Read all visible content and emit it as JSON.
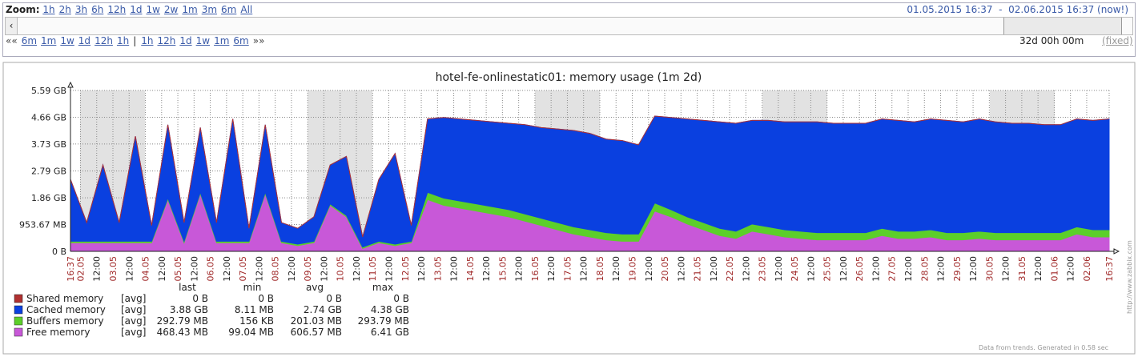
{
  "toolbar": {
    "zoom_label": "Zoom:",
    "zoom_links": [
      "1h",
      "2h",
      "3h",
      "6h",
      "12h",
      "1d",
      "1w",
      "2w",
      "1m",
      "3m",
      "6m",
      "All"
    ],
    "period_from": "01.05.2015 16:37",
    "period_sep": "-",
    "period_to": "02.06.2015 16:37 (now!)",
    "nav_back": "««",
    "nav_left": [
      "6m",
      "1m",
      "1w",
      "1d",
      "12h",
      "1h"
    ],
    "nav_sep": "|",
    "nav_right": [
      "1h",
      "12h",
      "1d",
      "1w",
      "1m",
      "6m"
    ],
    "nav_forward": "»»",
    "period_length": "32d 00h 00m",
    "period_mode": "(fixed)"
  },
  "chart_data": {
    "type": "stacked-area",
    "title": "hotel-fe-onlinestatic01: memory usage  (1m 2d)",
    "x": [
      0,
      12,
      24,
      36,
      48,
      60,
      72,
      84,
      96,
      108,
      120,
      132,
      144,
      156,
      168,
      180,
      192,
      204,
      216,
      228,
      240,
      252,
      264,
      276,
      288,
      300,
      312,
      324,
      336,
      348,
      360,
      372,
      384,
      396,
      408,
      420,
      432,
      444,
      456,
      468,
      480,
      492,
      504,
      516,
      528,
      540,
      552,
      564,
      576,
      588,
      600,
      612,
      624,
      636,
      648,
      660,
      672,
      684,
      696,
      708,
      720,
      732,
      744,
      756,
      768
    ],
    "xlim": [
      0,
      768
    ],
    "xticks": [
      {
        "value": 0,
        "label": "16:37"
      },
      {
        "value": 7.383,
        "label": "02.05"
      },
      {
        "value": 19.383,
        "label": "12:00"
      },
      {
        "value": 31.383,
        "label": "03.05"
      },
      {
        "value": 43.383,
        "label": "12:00"
      },
      {
        "value": 55.383,
        "label": "04.05"
      },
      {
        "value": 67.383,
        "label": "12:00"
      },
      {
        "value": 79.383,
        "label": "05.05"
      },
      {
        "value": 91.383,
        "label": "12:00"
      },
      {
        "value": 103.383,
        "label": "06.05"
      },
      {
        "value": 115.383,
        "label": "12:00"
      },
      {
        "value": 127.383,
        "label": "07.05"
      },
      {
        "value": 139.383,
        "label": "12:00"
      },
      {
        "value": 151.383,
        "label": "08.05"
      },
      {
        "value": 163.383,
        "label": "12:00"
      },
      {
        "value": 175.383,
        "label": "09.05"
      },
      {
        "value": 187.383,
        "label": "12:00"
      },
      {
        "value": 199.383,
        "label": "10.05"
      },
      {
        "value": 211.383,
        "label": "12:00"
      },
      {
        "value": 223.383,
        "label": "11.05"
      },
      {
        "value": 235.383,
        "label": "12:00"
      },
      {
        "value": 247.383,
        "label": "12.05"
      },
      {
        "value": 259.383,
        "label": "12:00"
      },
      {
        "value": 271.383,
        "label": "13.05"
      },
      {
        "value": 283.383,
        "label": "12:00"
      },
      {
        "value": 295.383,
        "label": "14.05"
      },
      {
        "value": 307.383,
        "label": "12:00"
      },
      {
        "value": 319.383,
        "label": "15.05"
      },
      {
        "value": 331.383,
        "label": "12:00"
      },
      {
        "value": 343.383,
        "label": "16.05"
      },
      {
        "value": 355.383,
        "label": "12:00"
      },
      {
        "value": 367.383,
        "label": "17.05"
      },
      {
        "value": 379.383,
        "label": "12:00"
      },
      {
        "value": 391.383,
        "label": "18.05"
      },
      {
        "value": 403.383,
        "label": "12:00"
      },
      {
        "value": 415.383,
        "label": "19.05"
      },
      {
        "value": 427.383,
        "label": "12:00"
      },
      {
        "value": 439.383,
        "label": "20.05"
      },
      {
        "value": 451.383,
        "label": "12:00"
      },
      {
        "value": 463.383,
        "label": "21.05"
      },
      {
        "value": 475.383,
        "label": "12:00"
      },
      {
        "value": 487.383,
        "label": "22.05"
      },
      {
        "value": 499.383,
        "label": "12:00"
      },
      {
        "value": 511.383,
        "label": "23.05"
      },
      {
        "value": 523.383,
        "label": "12:00"
      },
      {
        "value": 535.383,
        "label": "24.05"
      },
      {
        "value": 547.383,
        "label": "12:00"
      },
      {
        "value": 559.383,
        "label": "25.05"
      },
      {
        "value": 571.383,
        "label": "12:00"
      },
      {
        "value": 583.383,
        "label": "26.05"
      },
      {
        "value": 595.383,
        "label": "12:00"
      },
      {
        "value": 607.383,
        "label": "27.05"
      },
      {
        "value": 619.383,
        "label": "12:00"
      },
      {
        "value": 631.383,
        "label": "28.05"
      },
      {
        "value": 643.383,
        "label": "12:00"
      },
      {
        "value": 655.383,
        "label": "29.05"
      },
      {
        "value": 667.383,
        "label": "12:00"
      },
      {
        "value": 679.383,
        "label": "30.05"
      },
      {
        "value": 691.383,
        "label": "12:00"
      },
      {
        "value": 703.383,
        "label": "31.05"
      },
      {
        "value": 715.383,
        "label": "12:00"
      },
      {
        "value": 727.383,
        "label": "01.06"
      },
      {
        "value": 739.383,
        "label": "12:00"
      },
      {
        "value": 751.383,
        "label": "02.06"
      },
      {
        "value": 768,
        "label": "16:37"
      }
    ],
    "ylim": [
      0,
      5.59
    ],
    "yticks": [
      {
        "value": 0,
        "label": "0 B"
      },
      {
        "value": 0.931,
        "label": "953.67 MB"
      },
      {
        "value": 1.86,
        "label": "1.86 GB"
      },
      {
        "value": 2.79,
        "label": "2.79 GB"
      },
      {
        "value": 3.73,
        "label": "3.73 GB"
      },
      {
        "value": 4.66,
        "label": "4.66 GB"
      },
      {
        "value": 5.59,
        "label": "5.59 GB"
      }
    ],
    "grid": true,
    "series": [
      {
        "name": "Shared memory",
        "color": "#b03030",
        "values": [
          0,
          0,
          0,
          0,
          0,
          0,
          0,
          0,
          0,
          0,
          0,
          0,
          0,
          0,
          0,
          0,
          0,
          0,
          0,
          0,
          0,
          0,
          0,
          0,
          0,
          0,
          0,
          0,
          0,
          0,
          0,
          0,
          0,
          0,
          0,
          0,
          0,
          0,
          0,
          0,
          0,
          0,
          0,
          0,
          0,
          0,
          0,
          0,
          0,
          0,
          0,
          0,
          0,
          0,
          0,
          0,
          0,
          0,
          0,
          0,
          0,
          0,
          0,
          0,
          0
        ]
      },
      {
        "name": "Cached memory",
        "color": "#0a40e0",
        "values": [
          2.15,
          0.65,
          2.65,
          0.65,
          3.65,
          0.55,
          2.55,
          0.65,
          2.25,
          0.65,
          4.25,
          0.45,
          2.35,
          0.65,
          0.55,
          0.85,
          1.35,
          2.05,
          0.35,
          2.15,
          3.15,
          0.55,
          2.55,
          2.8,
          2.85,
          2.9,
          2.95,
          3.0,
          3.1,
          3.15,
          3.25,
          3.35,
          3.35,
          3.25,
          3.25,
          3.1,
          3.02,
          3.2,
          3.4,
          3.55,
          3.7,
          3.75,
          3.6,
          3.7,
          3.75,
          3.8,
          3.85,
          3.8,
          3.8,
          3.8,
          3.8,
          3.85,
          3.8,
          3.85,
          3.9,
          3.85,
          3.9,
          3.85,
          3.8,
          3.8,
          3.75,
          3.75,
          3.75,
          3.8,
          3.85
        ]
      },
      {
        "name": "Buffers memory",
        "color": "#5ccf2a",
        "values": [
          0.05,
          0.05,
          0.05,
          0.05,
          0.05,
          0.05,
          0.05,
          0.05,
          0.05,
          0.05,
          0.05,
          0.05,
          0.05,
          0.05,
          0.05,
          0.05,
          0.05,
          0.05,
          0.05,
          0.05,
          0.05,
          0.05,
          0.25,
          0.25,
          0.25,
          0.25,
          0.25,
          0.25,
          0.25,
          0.25,
          0.25,
          0.25,
          0.25,
          0.25,
          0.25,
          0.25,
          0.28,
          0.25,
          0.25,
          0.25,
          0.25,
          0.25,
          0.25,
          0.25,
          0.25,
          0.25,
          0.25,
          0.25,
          0.25,
          0.25,
          0.25,
          0.25,
          0.25,
          0.25,
          0.25,
          0.25,
          0.25,
          0.25,
          0.25,
          0.25,
          0.25,
          0.25,
          0.25,
          0.25,
          0.25
        ]
      },
      {
        "name": "Free memory",
        "color": "#c858d8",
        "values": [
          0.3,
          0.3,
          0.3,
          0.3,
          0.3,
          0.3,
          1.8,
          0.3,
          2.0,
          0.3,
          0.3,
          0.3,
          2.0,
          0.3,
          0.2,
          0.3,
          1.6,
          1.2,
          0.1,
          0.3,
          0.2,
          0.3,
          1.8,
          1.6,
          1.5,
          1.4,
          1.3,
          1.2,
          1.05,
          0.9,
          0.75,
          0.6,
          0.5,
          0.4,
          0.35,
          0.35,
          1.4,
          1.2,
          0.95,
          0.75,
          0.55,
          0.45,
          0.7,
          0.6,
          0.5,
          0.45,
          0.4,
          0.4,
          0.4,
          0.4,
          0.55,
          0.45,
          0.45,
          0.5,
          0.4,
          0.4,
          0.45,
          0.4,
          0.4,
          0.4,
          0.4,
          0.4,
          0.6,
          0.5,
          0.5
        ]
      }
    ]
  },
  "legend": {
    "headers": [
      "last",
      "min",
      "avg",
      "max"
    ],
    "rows": [
      {
        "function": "[avg]",
        "last": "0 B",
        "min": "0 B",
        "avg": "0 B",
        "max": "0 B"
      },
      {
        "function": "[avg]",
        "last": "3.88 GB",
        "min": "8.11 MB",
        "avg": "2.74 GB",
        "max": "4.38 GB"
      },
      {
        "function": "[avg]",
        "last": "292.79 MB",
        "min": "156 KB",
        "avg": "201.03 MB",
        "max": "293.79 MB"
      },
      {
        "function": "[avg]",
        "last": "468.43 MB",
        "min": "99.04 MB",
        "avg": "606.57 MB",
        "max": "6.41 GB"
      }
    ]
  },
  "footer": {
    "note": "Data from trends. Generated in 0.58 sec",
    "watermark": "http://www.zabbix.com"
  }
}
